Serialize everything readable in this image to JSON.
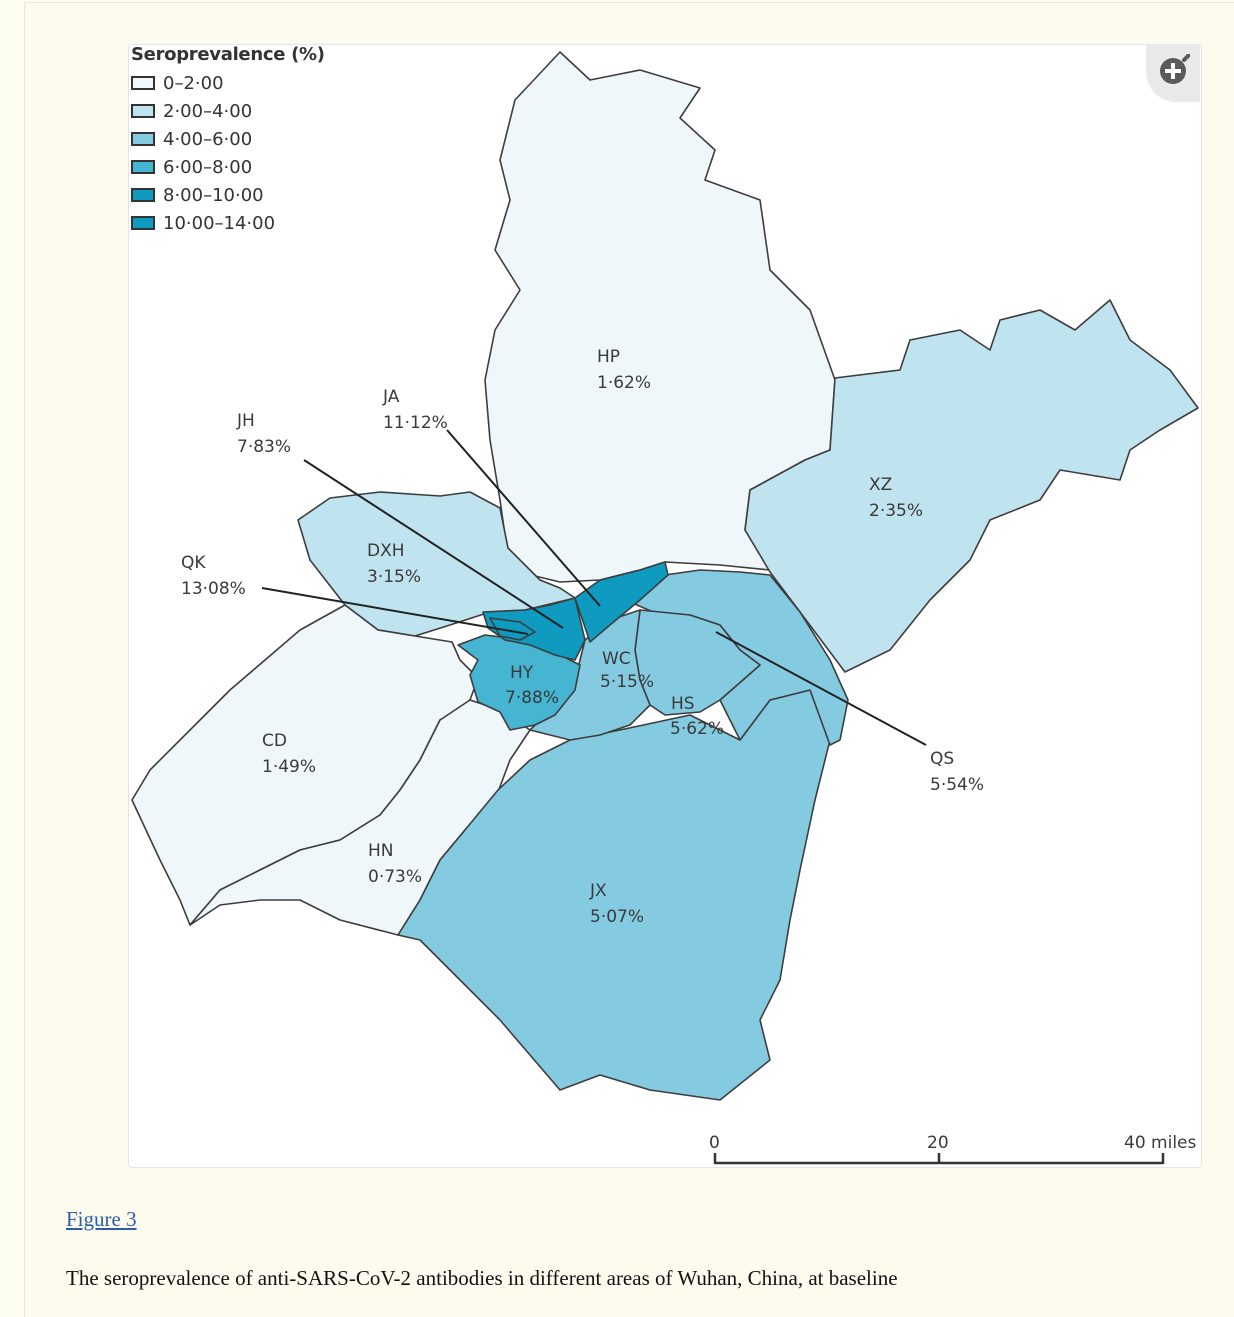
{
  "legend": {
    "title": "Seroprevalence (%)",
    "items": [
      {
        "label": "0–2·00",
        "color": "#eff7fb"
      },
      {
        "label": "2·00–4·00",
        "color": "#bfe3ef"
      },
      {
        "label": "4·00–6·00",
        "color": "#84cbe2"
      },
      {
        "label": "6·00–8·00",
        "color": "#45b5d2"
      },
      {
        "label": "8·00–10·00",
        "color": "#0f9ac0"
      },
      {
        "label": "10·00–14·00",
        "color": "#0f9ac0"
      }
    ]
  },
  "districts": [
    {
      "code": "HP",
      "value": "1·62%"
    },
    {
      "code": "XZ",
      "value": "2·35%"
    },
    {
      "code": "JA",
      "value": "11·12%"
    },
    {
      "code": "JH",
      "value": "7·83%"
    },
    {
      "code": "DXH",
      "value": "3·15%"
    },
    {
      "code": "QK",
      "value": "13·08%"
    },
    {
      "code": "HY",
      "value": "7·88%"
    },
    {
      "code": "WC",
      "value": "5·15%"
    },
    {
      "code": "HS",
      "value": "5·62%"
    },
    {
      "code": "QS",
      "value": "5·54%"
    },
    {
      "code": "CD",
      "value": "1·49%"
    },
    {
      "code": "HN",
      "value": "0·73%"
    },
    {
      "code": "JX",
      "value": "5·07%"
    }
  ],
  "scale_bar": {
    "labels": [
      "0",
      "20",
      "40 miles"
    ]
  },
  "zoom_icon": "zoom-in-icon",
  "figure_link": "Figure 3",
  "caption": "The seroprevalence of anti-SARS-CoV-2 antibodies in different areas of Wuhan, China, at baseline"
}
